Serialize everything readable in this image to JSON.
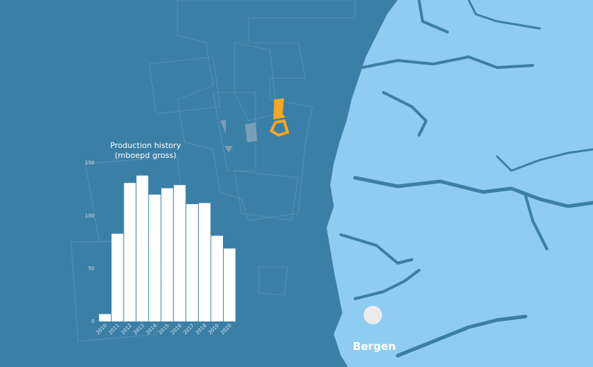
{
  "chart_data": {
    "type": "bar",
    "title": "Production history",
    "subtitle": "(mboepd gross)",
    "categories": [
      "2010",
      "2011",
      "2012",
      "2013",
      "2014",
      "2015",
      "2016",
      "2017",
      "2018",
      "2019",
      "2020"
    ],
    "values": [
      7,
      83,
      131,
      138,
      120,
      126,
      129,
      111,
      112,
      81,
      69
    ],
    "color": "#ffffff",
    "ylim": [
      0,
      150
    ],
    "yticks": [
      0,
      50,
      100,
      150
    ],
    "grid": false
  },
  "map": {
    "city_label": "Bergen"
  }
}
